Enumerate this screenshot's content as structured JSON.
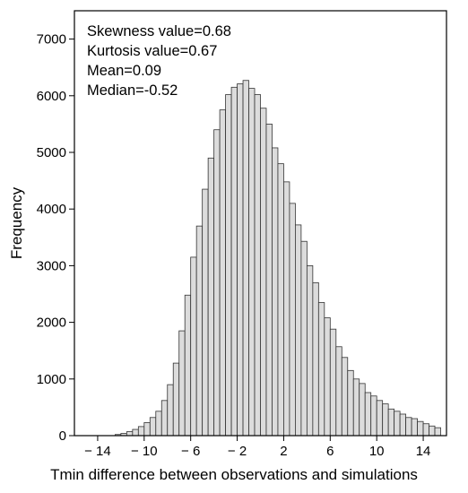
{
  "chart_data": {
    "type": "bar",
    "xlabel": "Tmin difference between observations and simulations",
    "ylabel": "Frequency",
    "xlim": [
      -16,
      16
    ],
    "ylim": [
      0,
      7500
    ],
    "x_ticks": [
      -14,
      -10,
      -6,
      -2,
      2,
      6,
      10,
      14
    ],
    "x_tick_labels": [
      "− 14",
      "− 10",
      "− 6",
      "− 2",
      "2",
      "6",
      "10",
      "14"
    ],
    "y_ticks": [
      0,
      1000,
      2000,
      3000,
      4000,
      5000,
      6000,
      7000
    ],
    "y_tick_labels": [
      "0",
      "1000",
      "2000",
      "3000",
      "4000",
      "5000",
      "6000",
      "7000"
    ],
    "bin_width": 0.5,
    "bin_starts": [
      -12.5,
      -12.0,
      -11.5,
      -11.0,
      -10.5,
      -10.0,
      -9.5,
      -9.0,
      -8.5,
      -8.0,
      -7.5,
      -7.0,
      -6.5,
      -6.0,
      -5.5,
      -5.0,
      -4.5,
      -4.0,
      -3.5,
      -3.0,
      -2.5,
      -2.0,
      -1.5,
      -1.0,
      -0.5,
      0.0,
      0.5,
      1.0,
      1.5,
      2.0,
      2.5,
      3.0,
      3.5,
      4.0,
      4.5,
      5.0,
      5.5,
      6.0,
      6.5,
      7.0,
      7.5,
      8.0,
      8.5,
      9.0,
      9.5,
      10.0,
      10.5,
      11.0,
      11.5,
      12.0,
      12.5,
      13.0,
      13.5,
      14.0,
      14.5,
      15.0
    ],
    "values": [
      20,
      40,
      70,
      110,
      160,
      230,
      320,
      430,
      620,
      900,
      1280,
      1850,
      2480,
      3150,
      3700,
      4350,
      4900,
      5400,
      5750,
      6020,
      6150,
      6210,
      6270,
      6130,
      6020,
      5780,
      5500,
      5080,
      4800,
      4480,
      4100,
      3720,
      3430,
      3000,
      2700,
      2350,
      2080,
      1880,
      1570,
      1380,
      1150,
      1000,
      920,
      760,
      700,
      620,
      560,
      470,
      430,
      380,
      320,
      300,
      250,
      210,
      170,
      140
    ],
    "bar_fill": "#dcdcdc",
    "bar_stroke": "#333333",
    "grid": false,
    "annotations": [
      "Skewness value=0.68",
      "Kurtosis value=0.67",
      "Mean=0.09",
      "Median=-0.52"
    ]
  }
}
